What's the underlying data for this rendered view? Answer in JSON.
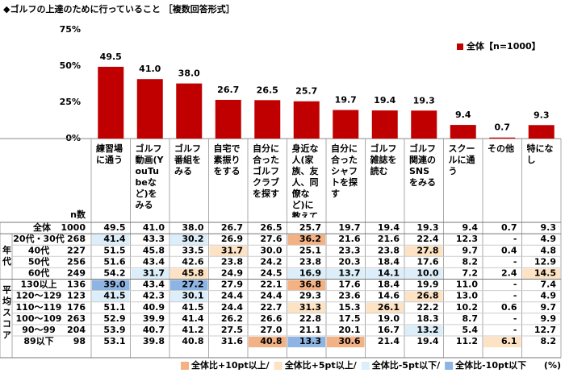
{
  "title": "◆ゴルフの上達のために行っていること ［複数回答形式］",
  "chart_data": {
    "type": "bar",
    "categories": [
      "練習場に通う",
      "ゴルフ動画(YouTubeなど)をみる",
      "ゴルフ番組をみる",
      "自宅で素振りをする",
      "自分に合ったゴルフクラブを探す",
      "身近な人(家族、友人、同僚など)に教えてもらう",
      "自分に合ったシャフトを探す",
      "ゴルフ雑誌を読む",
      "ゴルフ関連のSNSをみる",
      "スクールに通う",
      "その他",
      "特になし"
    ],
    "series": [
      {
        "name": "全体【n=1000】",
        "color": "#c00000",
        "values": [
          49.5,
          41.0,
          38.0,
          26.7,
          26.5,
          25.7,
          19.7,
          19.4,
          19.3,
          9.4,
          0.7,
          9.3
        ],
        "value_labels": [
          "49.5",
          "41.0",
          "38.0",
          "26.7",
          "26.5",
          "25.7",
          "19.7",
          "19.4",
          "19.3",
          "9.4",
          "0.7",
          "9.3"
        ]
      }
    ],
    "ylim": [
      0,
      75
    ],
    "yticks": [
      {
        "value": 0,
        "label": "0%"
      },
      {
        "value": 25,
        "label": "25%"
      },
      {
        "value": 50,
        "label": "50%"
      },
      {
        "value": 75,
        "label": "75%"
      }
    ],
    "legend": "top-right"
  },
  "table": {
    "n_header": "n数",
    "total": {
      "label": "全体",
      "n": 1000,
      "cells": [
        "49.5",
        "41.0",
        "38.0",
        "26.7",
        "26.5",
        "25.7",
        "19.7",
        "19.4",
        "19.3",
        "9.4",
        "0.7",
        "9.3"
      ]
    },
    "groups": [
      {
        "label": "年代",
        "rows": [
          {
            "label": "20代・30代",
            "n": 268,
            "cells": [
              "41.4",
              "43.3",
              "30.2",
              "26.9",
              "27.6",
              "36.2",
              "21.6",
              "21.6",
              "22.4",
              "12.3",
              "-",
              "4.9"
            ]
          },
          {
            "label": "40代",
            "n": 227,
            "cells": [
              "51.5",
              "45.8",
              "33.5",
              "31.7",
              "30.0",
              "25.1",
              "23.3",
              "23.8",
              "27.8",
              "9.7",
              "0.4",
              "4.8"
            ]
          },
          {
            "label": "50代",
            "n": 256,
            "cells": [
              "51.6",
              "43.4",
              "42.6",
              "23.8",
              "24.2",
              "23.8",
              "20.3",
              "18.4",
              "17.6",
              "8.2",
              "-",
              "12.9"
            ]
          },
          {
            "label": "60代",
            "n": 249,
            "cells": [
              "54.2",
              "31.7",
              "45.8",
              "24.9",
              "24.5",
              "16.9",
              "13.7",
              "14.1",
              "10.0",
              "7.2",
              "2.4",
              "14.5"
            ]
          }
        ]
      },
      {
        "label": "平均スコア",
        "rows": [
          {
            "label": "130以上",
            "n": 136,
            "cells": [
              "39.0",
              "43.4",
              "27.2",
              "27.9",
              "22.1",
              "36.8",
              "17.6",
              "18.4",
              "19.9",
              "11.0",
              "-",
              "7.4"
            ]
          },
          {
            "label": "120〜129",
            "n": 123,
            "cells": [
              "41.5",
              "42.3",
              "30.1",
              "24.4",
              "24.4",
              "29.3",
              "23.6",
              "14.6",
              "26.8",
              "13.0",
              "-",
              "4.9"
            ]
          },
          {
            "label": "110〜119",
            "n": 176,
            "cells": [
              "51.1",
              "40.9",
              "41.5",
              "24.4",
              "22.7",
              "31.3",
              "15.3",
              "26.1",
              "22.2",
              "10.2",
              "0.6",
              "9.7"
            ]
          },
          {
            "label": "100〜109",
            "n": 263,
            "cells": [
              "52.9",
              "39.9",
              "41.4",
              "26.2",
              "26.6",
              "22.8",
              "17.5",
              "19.0",
              "18.3",
              "8.7",
              "-",
              "9.9"
            ]
          },
          {
            "label": "90〜99",
            "n": 204,
            "cells": [
              "53.9",
              "40.7",
              "41.2",
              "27.5",
              "27.0",
              "21.1",
              "20.1",
              "16.7",
              "13.2",
              "5.4",
              "-",
              "12.7"
            ]
          },
          {
            "label": "89以下",
            "n": 98,
            "cells": [
              "53.1",
              "39.8",
              "40.8",
              "31.6",
              "40.8",
              "13.3",
              "30.6",
              "21.4",
              "19.4",
              "11.2",
              "6.1",
              "8.2"
            ]
          }
        ]
      }
    ],
    "legend": [
      {
        "value": 10,
        "label": "全体比+10pt以上/",
        "color": "#f4b183"
      },
      {
        "value": 5,
        "label": "全体比+5pt以上/",
        "color": "#fde3c4"
      },
      {
        "value": -5,
        "label": "全体比-5pt以下/",
        "color": "#dbeef9"
      },
      {
        "value": -10,
        "label": "全体比-10pt以下",
        "color": "#8eb4e3"
      }
    ],
    "unit": "(%)"
  }
}
